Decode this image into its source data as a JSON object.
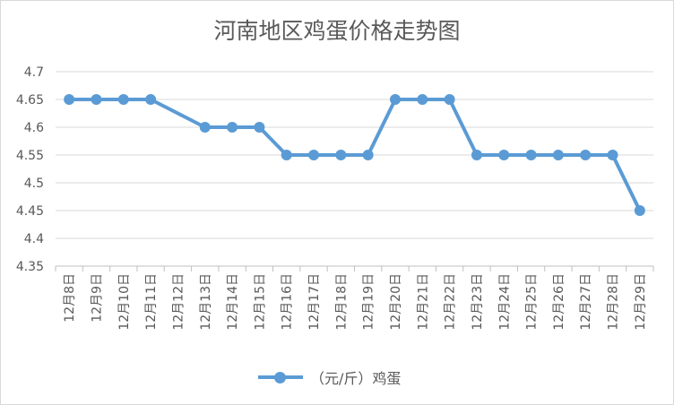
{
  "chart_data": {
    "type": "line",
    "title": "河南地区鸡蛋价格走势图",
    "categories": [
      "12月8日",
      "12月9日",
      "12月10日",
      "12月11日",
      "12月12日",
      "12月13日",
      "12月14日",
      "12月15日",
      "12月16日",
      "12月17日",
      "12月18日",
      "12月19日",
      "12月20日",
      "12月21日",
      "12月22日",
      "12月23日",
      "12月24日",
      "12月25日",
      "12月26日",
      "12月27日",
      "12月28日",
      "12月29日"
    ],
    "series": [
      {
        "name": "（元/斤）鸡蛋",
        "color": "#5b9bd5",
        "points": [
          {
            "x": "12月8日",
            "y": 4.65
          },
          {
            "x": "12月9日",
            "y": 4.65
          },
          {
            "x": "12月10日",
            "y": 4.65
          },
          {
            "x": "12月11日",
            "y": 4.65
          },
          {
            "x": "12月13日",
            "y": 4.6
          },
          {
            "x": "12月14日",
            "y": 4.6
          },
          {
            "x": "12月15日",
            "y": 4.6
          },
          {
            "x": "12月16日",
            "y": 4.55
          },
          {
            "x": "12月17日",
            "y": 4.55
          },
          {
            "x": "12月18日",
            "y": 4.55
          },
          {
            "x": "12月19日",
            "y": 4.55
          },
          {
            "x": "12月20日",
            "y": 4.65
          },
          {
            "x": "12月21日",
            "y": 4.65
          },
          {
            "x": "12月22日",
            "y": 4.65
          },
          {
            "x": "12月23日",
            "y": 4.55
          },
          {
            "x": "12月24日",
            "y": 4.55
          },
          {
            "x": "12月25日",
            "y": 4.55
          },
          {
            "x": "12月26日",
            "y": 4.55
          },
          {
            "x": "12月27日",
            "y": 4.55
          },
          {
            "x": "12月28日",
            "y": 4.55
          },
          {
            "x": "12月29日",
            "y": 4.45
          }
        ]
      }
    ],
    "y_ticks": [
      "4.35",
      "4.4",
      "4.45",
      "4.5",
      "4.55",
      "4.6",
      "4.65",
      "4.7"
    ],
    "ylim": [
      4.35,
      4.7
    ],
    "grid": "horizontal",
    "legend_position": "bottom"
  }
}
